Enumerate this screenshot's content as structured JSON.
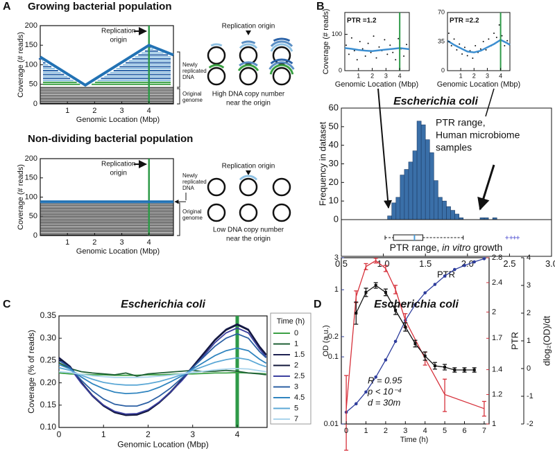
{
  "panel_labels": [
    "A",
    "B",
    "C",
    "D"
  ],
  "diagram_a1": {
    "label": "Replication origin",
    "caption": [
      "High DNA copy number",
      "near the origin"
    ]
  },
  "diagram_a2": {
    "label": "Replication origin",
    "caption": [
      "Low DNA copy number",
      "near the origin"
    ]
  },
  "chart_data": [
    {
      "type": "line",
      "title": "Growing bacterial population",
      "xlabel": "Genomic Location (Mbp)",
      "ylabel": "Coverage (# reads)",
      "x": [
        0,
        1.66,
        4,
        4.9
      ],
      "values": [
        120,
        48,
        150,
        125
      ],
      "color": "#2272b4",
      "xlim": [
        0,
        4.9
      ],
      "ylim": [
        0,
        200
      ],
      "xticks": [
        1,
        2,
        3,
        4
      ],
      "yticks": [
        0,
        50,
        100,
        150,
        200
      ],
      "vline": 4,
      "vline_color": "#2e9a48",
      "origin_label": [
        "Replication",
        "origin"
      ],
      "side_labels": [
        [
          "Newly",
          "replicated",
          "DNA"
        ],
        [
          "Original",
          "genome"
        ]
      ]
    },
    {
      "type": "line",
      "title": "Non-dividing bacterial population",
      "xlabel": "Genomic Location (Mbp)",
      "ylabel": "Coverage (# reads)",
      "x": [
        0,
        4.9
      ],
      "values": [
        88,
        88
      ],
      "color": "#2272b4",
      "xlim": [
        0,
        4.9
      ],
      "ylim": [
        0,
        200
      ],
      "xticks": [
        1,
        2,
        3,
        4
      ],
      "yticks": [
        0,
        50,
        100,
        150,
        200
      ],
      "vline": 4,
      "vline_color": "#2e9a48",
      "origin_label": [
        "Replication",
        "origin"
      ],
      "side_labels": [
        [
          "Newly",
          "replicated",
          "DNA"
        ],
        [
          "Original",
          "genome"
        ]
      ]
    },
    {
      "type": "scatter",
      "annotation": "PTR =1.2",
      "xlabel": "Genomic Location (Mbp)",
      "ylabel": "Coverage (# reads)",
      "x": [
        0.1,
        0.3,
        0.5,
        0.7,
        0.9,
        1.1,
        1.3,
        1.5,
        1.7,
        1.9,
        2.1,
        2.3,
        2.5,
        2.7,
        2.9,
        3.1,
        3.3,
        3.5,
        3.7,
        3.9,
        4.1,
        4.3,
        4.5
      ],
      "values": [
        70,
        45,
        90,
        55,
        30,
        80,
        60,
        40,
        75,
        50,
        95,
        35,
        65,
        55,
        85,
        45,
        70,
        50,
        30,
        88,
        60,
        40,
        72
      ],
      "trend_x": [
        0,
        0.5,
        1,
        1.5,
        2,
        2.5,
        3,
        3.5,
        4,
        4.5,
        4.7
      ],
      "trend_values": [
        62,
        60,
        57,
        55,
        54,
        56,
        58,
        60,
        62,
        60,
        59
      ],
      "color": "#111111",
      "trend_color": "#3d8fd1",
      "xlim": [
        0,
        4.7
      ],
      "ylim": [
        0,
        160
      ],
      "xticks": [
        1,
        2,
        3,
        4
      ],
      "yticks": [
        0,
        100
      ],
      "vline": 4,
      "vline_color": "#2e9a48"
    },
    {
      "type": "scatter",
      "annotation": "PTR =2.2",
      "xlabel": "Genomic Location (Mbp)",
      "x": [
        0.1,
        0.3,
        0.5,
        0.7,
        0.9,
        1.1,
        1.3,
        1.5,
        1.7,
        1.9,
        2.1,
        2.3,
        2.5,
        2.7,
        2.9,
        3.1,
        3.3,
        3.5,
        3.7,
        3.9,
        4.1,
        4.3,
        4.5
      ],
      "values": [
        45,
        30,
        38,
        25,
        32,
        20,
        28,
        18,
        24,
        15,
        30,
        22,
        26,
        35,
        25,
        38,
        30,
        45,
        40,
        55,
        42,
        30,
        36
      ],
      "trend_x": [
        0,
        0.5,
        1,
        1.5,
        2,
        2.5,
        3,
        3.5,
        4,
        4.5,
        4.7
      ],
      "trend_values": [
        36,
        31,
        27,
        23,
        22,
        24,
        28,
        32,
        37,
        33,
        31
      ],
      "color": "#111111",
      "trend_color": "#3d8fd1",
      "xlim": [
        0,
        4.7
      ],
      "ylim": [
        0,
        70
      ],
      "xticks": [
        1,
        2,
        3,
        4
      ],
      "yticks": [
        0,
        35,
        70
      ],
      "vline": 4,
      "vline_color": "#2e9a48"
    },
    {
      "type": "histogram",
      "title": "Escherichia coli",
      "xlabel": "PTR",
      "ylabel": "Frequency in dataset",
      "bins": [
        1.05,
        1.1,
        1.15,
        1.2,
        1.25,
        1.3,
        1.35,
        1.4,
        1.45,
        1.5,
        1.55,
        1.6,
        1.65,
        1.7,
        1.75,
        1.8,
        1.85,
        1.9,
        1.95,
        2,
        2.05,
        2.1,
        2.15,
        2.2,
        2.25,
        2.3,
        2.35,
        2.4
      ],
      "counts": [
        2,
        9,
        12,
        24,
        27,
        31,
        37,
        53,
        51,
        43,
        36,
        21,
        12,
        10,
        7,
        5,
        3,
        1,
        0,
        0,
        0,
        0,
        1,
        1,
        0,
        1,
        0
      ],
      "color": "#3a6fa8",
      "xlim": [
        0.5,
        3.0
      ],
      "ylim": [
        0,
        60
      ],
      "xticks": [
        0.5,
        {
          "value": 1,
          "label": "1.0"
        },
        1.5,
        {
          "value": 2,
          "label": "2.0"
        },
        2.5,
        {
          "value": 3,
          "label": "3.0"
        }
      ],
      "yticks": [
        0,
        10,
        20,
        30,
        40,
        50,
        60
      ],
      "box": {
        "whislo": 1.02,
        "q1": 1.12,
        "med": 1.37,
        "q3": 1.47,
        "whishi": 1.95,
        "fliers": [
          2.47,
          2.52,
          2.56,
          2.6
        ]
      },
      "box_median_color": "#4a9ad6",
      "flier_color": "#6a6ad8",
      "microbiome_label": [
        "PTR range,",
        "Human microbiome",
        "samples"
      ],
      "in_vitro_label": [
        "PTR range, ",
        "in vitro",
        " growth"
      ]
    },
    {
      "type": "line",
      "title": "Escherichia coli",
      "xlabel": "Genomic Location (Mbp)",
      "ylabel": "Coverage (% of reads)",
      "x": [
        0,
        0.25,
        0.5,
        0.75,
        1,
        1.25,
        1.5,
        1.75,
        2,
        2.25,
        2.5,
        2.75,
        3,
        3.25,
        3.5,
        3.75,
        4,
        4.25,
        4.5,
        4.65
      ],
      "xlim": [
        0,
        4.67
      ],
      "ylim": [
        0.1,
        0.35
      ],
      "xticks": [
        0,
        1,
        2,
        3,
        4
      ],
      "yticks": [
        {
          "value": 0.1,
          "label": "0.10"
        },
        0.15,
        {
          "value": 0.2,
          "label": "0.20"
        },
        0.25,
        {
          "value": 0.3,
          "label": "0.30"
        },
        0.35
      ],
      "vline": 4,
      "vline_color": "#2e9a48",
      "legend_title": "Time (h)",
      "series": [
        {
          "name": "0",
          "color": "#3aa043",
          "values": [
            0.222,
            0.22,
            0.219,
            0.218,
            0.218,
            0.217,
            0.217,
            0.217,
            0.218,
            0.218,
            0.219,
            0.22,
            0.22,
            0.221,
            0.222,
            0.222,
            0.223,
            0.222,
            0.221,
            0.22
          ]
        },
        {
          "name": "1",
          "color": "#1f5f35",
          "values": [
            0.245,
            0.232,
            0.225,
            0.222,
            0.22,
            0.218,
            0.222,
            0.215,
            0.22,
            0.222,
            0.224,
            0.226,
            0.228,
            0.225,
            0.226,
            0.228,
            0.226,
            0.222,
            0.22,
            0.218
          ]
        },
        {
          "name": "1.5",
          "color": "#1c2050",
          "values": [
            0.257,
            0.237,
            0.202,
            0.172,
            0.15,
            0.135,
            0.129,
            0.13,
            0.139,
            0.157,
            0.18,
            0.207,
            0.237,
            0.267,
            0.297,
            0.32,
            0.332,
            0.32,
            0.282,
            0.264
          ]
        },
        {
          "name": "2",
          "color": "#10153a",
          "values": [
            0.255,
            0.235,
            0.2,
            0.17,
            0.148,
            0.133,
            0.127,
            0.128,
            0.137,
            0.155,
            0.178,
            0.205,
            0.235,
            0.265,
            0.295,
            0.318,
            0.33,
            0.318,
            0.28,
            0.262
          ]
        },
        {
          "name": "2.5",
          "color": "#3b3f9f",
          "values": [
            0.252,
            0.233,
            0.199,
            0.171,
            0.15,
            0.136,
            0.13,
            0.131,
            0.14,
            0.157,
            0.179,
            0.204,
            0.233,
            0.261,
            0.29,
            0.312,
            0.323,
            0.312,
            0.276,
            0.258
          ]
        },
        {
          "name": "3",
          "color": "#2b5fa3",
          "values": [
            0.25,
            0.234,
            0.206,
            0.182,
            0.164,
            0.152,
            0.148,
            0.148,
            0.156,
            0.17,
            0.188,
            0.21,
            0.234,
            0.258,
            0.282,
            0.3,
            0.31,
            0.3,
            0.27,
            0.256
          ]
        },
        {
          "name": "4.5",
          "color": "#2f84bf",
          "values": [
            0.241,
            0.231,
            0.213,
            0.198,
            0.187,
            0.179,
            0.176,
            0.177,
            0.181,
            0.19,
            0.202,
            0.215,
            0.231,
            0.246,
            0.261,
            0.272,
            0.278,
            0.272,
            0.253,
            0.244
          ]
        },
        {
          "name": "5",
          "color": "#5ca8d6",
          "values": [
            0.234,
            0.228,
            0.217,
            0.208,
            0.201,
            0.197,
            0.195,
            0.195,
            0.198,
            0.203,
            0.21,
            0.218,
            0.228,
            0.237,
            0.246,
            0.252,
            0.256,
            0.252,
            0.241,
            0.236
          ]
        },
        {
          "name": "7",
          "color": "#a9d4ec",
          "values": [
            0.225,
            0.223,
            0.219,
            0.216,
            0.214,
            0.212,
            0.212,
            0.212,
            0.213,
            0.215,
            0.217,
            0.22,
            0.223,
            0.226,
            0.229,
            0.231,
            0.232,
            0.231,
            0.227,
            0.225
          ]
        }
      ]
    },
    {
      "type": "line",
      "title": "Escherichia coli",
      "xlabel": "Time (h)",
      "ylabel": "OD (a.u.)",
      "y2label": "PTR",
      "y3label": "dlog₂(OD)/dt",
      "xlim": [
        -0.25,
        7.25
      ],
      "xticks": [
        0,
        1,
        2,
        3,
        4,
        5,
        6,
        7
      ],
      "ylim": [
        0.01,
        3
      ],
      "ylog": true,
      "yticks": [
        0.01,
        0.1,
        0.2,
        1,
        3
      ],
      "ycolor": "#2e3d9c",
      "y2lim": [
        1,
        2.8
      ],
      "y2log": true,
      "y2ticks": [
        1,
        1.2,
        1.4,
        1.7,
        2,
        2.4,
        2.8
      ],
      "y2color": "#d6303a",
      "y3lim": [
        -2,
        4
      ],
      "y3ticks": [
        4,
        3,
        2,
        1,
        0,
        -1,
        -2
      ],
      "y3color": "#111111",
      "stats": [
        "R = 0.95",
        "p < 10⁻⁴",
        "d = 30m"
      ],
      "series": [
        {
          "axis": "y",
          "color": "#2e3d9c",
          "marker": "circle",
          "x": [
            0,
            0.5,
            1,
            1.5,
            2,
            2.5,
            3,
            3.5,
            4,
            4.5,
            5,
            5.5,
            6,
            6.5,
            7
          ],
          "values": [
            0.015,
            0.02,
            0.03,
            0.05,
            0.09,
            0.17,
            0.35,
            0.6,
            0.9,
            1.2,
            1.6,
            2,
            2.3,
            2.6,
            2.9
          ]
        },
        {
          "axis": "y2",
          "color": "#d6303a",
          "x": [
            0,
            0.5,
            1,
            1.5,
            2,
            2.5,
            3,
            4,
            5,
            7
          ],
          "values": [
            1.1,
            2.2,
            2.65,
            2.75,
            2.62,
            2.3,
            1.9,
            1.5,
            1.2,
            1.1
          ],
          "errors": [
            0.25,
            0.08,
            0.05,
            0.04,
            0.05,
            0.06,
            0.08,
            0.06,
            0.12,
            0.05
          ]
        },
        {
          "axis": "y3",
          "color": "#111111",
          "marker": "square",
          "x": [
            0.5,
            1,
            1.5,
            2,
            2.5,
            3,
            3.5,
            4,
            4.5,
            5,
            5.5,
            6,
            6.5
          ],
          "values": [
            2,
            2.75,
            3,
            2.75,
            2.1,
            1.5,
            0.9,
            0.45,
            0.1,
            0.05,
            -0.05,
            -0.05,
            -0.05
          ],
          "errors": [
            0.4,
            0.15,
            0.1,
            0.12,
            0.15,
            0.15,
            0.12,
            0.15,
            0.12,
            0.1,
            0.08,
            0.08,
            0.08
          ]
        }
      ]
    }
  ]
}
